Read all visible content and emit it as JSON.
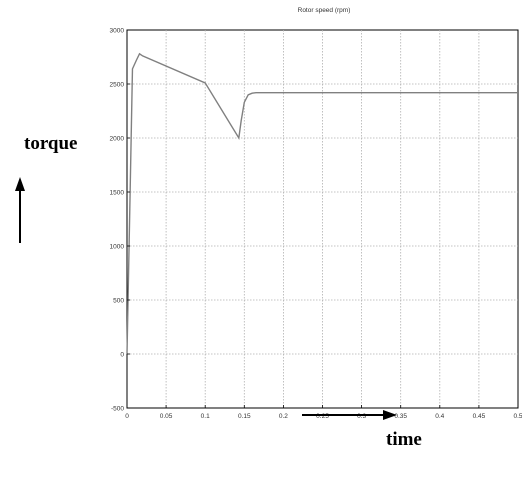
{
  "chart_data": {
    "type": "line",
    "title": "Rotor speed (rpm)",
    "xlabel": "",
    "ylabel": "",
    "xlim": [
      0,
      0.5
    ],
    "ylim": [
      -500,
      3000
    ],
    "x_ticks": [
      0,
      0.05,
      0.1,
      0.15,
      0.2,
      0.25,
      0.3,
      0.35,
      0.4,
      0.45,
      0.5
    ],
    "x_tick_labels": [
      "0",
      "0.05",
      "0.1",
      "0.15",
      "0.2",
      "0.25",
      "0.3",
      "0.35",
      "0.4",
      "0.45",
      "0.5"
    ],
    "y_ticks": [
      -500,
      0,
      500,
      1000,
      1500,
      2000,
      2500,
      3000
    ],
    "y_tick_labels": [
      "-500",
      "0",
      "500",
      "1000",
      "1500",
      "2000",
      "2500",
      "3000"
    ],
    "grid": true,
    "series": [
      {
        "name": "",
        "color": "#808080",
        "x": [
          0,
          0.004,
          0.007,
          0.012,
          0.016,
          0.02,
          0.1,
          0.143,
          0.146,
          0.15,
          0.155,
          0.16,
          0.165,
          0.2,
          0.3,
          0.4,
          0.5
        ],
        "y": [
          0,
          1500,
          2640,
          2720,
          2780,
          2760,
          2510,
          2000,
          2160,
          2330,
          2400,
          2415,
          2420,
          2420,
          2420,
          2420,
          2420
        ]
      }
    ],
    "annotations": [
      {
        "text": "torque",
        "arrow": "up"
      },
      {
        "text": "time",
        "arrow": "right"
      }
    ]
  },
  "colors": {
    "line": "#808080",
    "grid": "#b0b0b0",
    "axis": "#000000",
    "annotation": "#000000"
  }
}
